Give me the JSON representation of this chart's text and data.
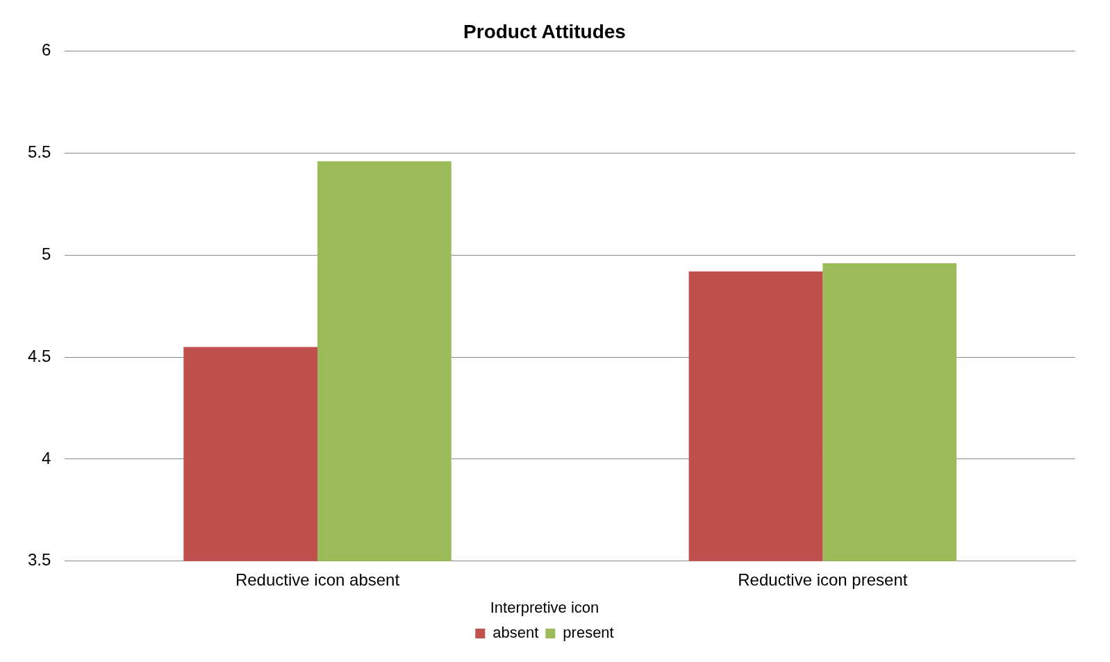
{
  "chart_data": {
    "type": "bar",
    "title": "Product Attitudes",
    "legend_title": "Interpretive icon",
    "categories": [
      "Reductive icon absent",
      "Reductive icon present"
    ],
    "series": [
      {
        "name": "absent",
        "color": "#c0504d",
        "values": [
          4.55,
          4.92
        ]
      },
      {
        "name": "present",
        "color": "#9bbb59",
        "values": [
          5.46,
          4.96
        ]
      }
    ],
    "ylim": [
      3.5,
      6
    ],
    "yticks": [
      3.5,
      4,
      4.5,
      5,
      5.5,
      6
    ],
    "grid": "y",
    "legend": "bottom"
  }
}
